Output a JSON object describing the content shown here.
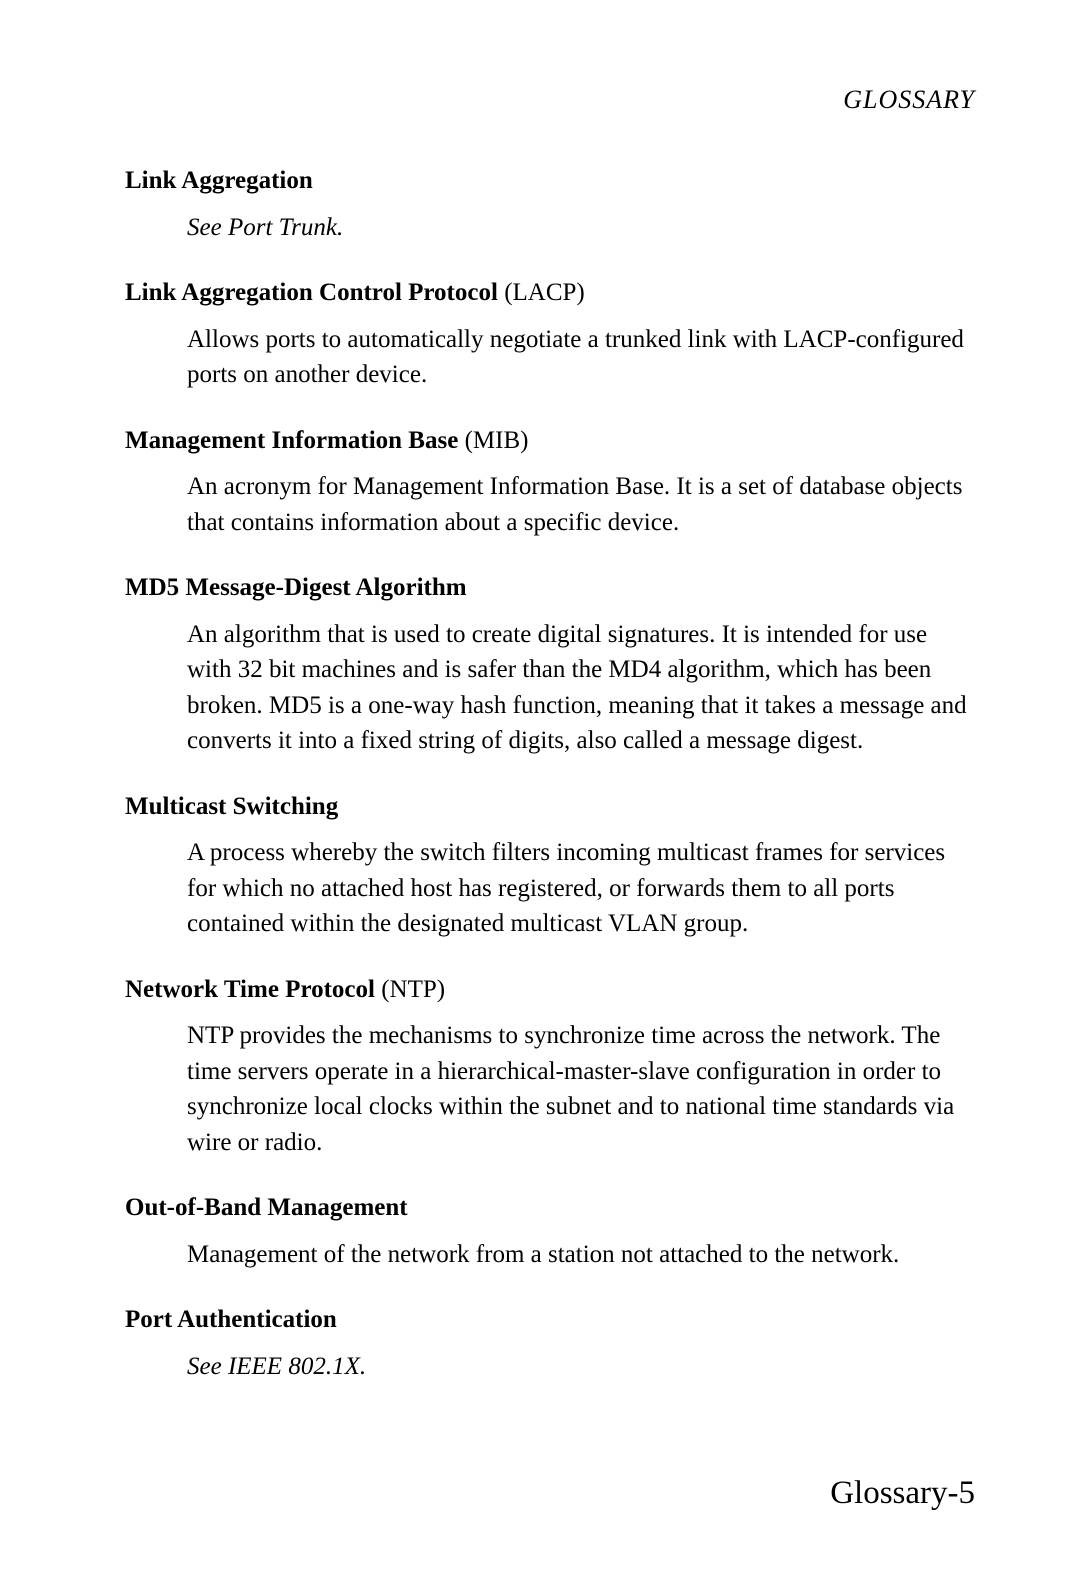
{
  "header": "GLOSSARY",
  "entries": [
    {
      "term_bold": "Link Aggregation",
      "term_paren": "",
      "definition": "See Port Trunk.",
      "italic": true
    },
    {
      "term_bold": "Link Aggregation Control Protocol",
      "term_paren": " (LACP)",
      "definition": "Allows ports to automatically negotiate a trunked link with LACP-configured ports on another device.",
      "italic": false
    },
    {
      "term_bold": "Management Information Base",
      "term_paren": " (MIB)",
      "definition": "An acronym for Management Information Base. It is a set of database objects that contains information about a specific device.",
      "italic": false
    },
    {
      "term_bold": "MD5 Message-Digest Algorithm",
      "term_paren": "",
      "definition": "An algorithm that is used to create digital signatures. It is intended for use with 32 bit machines and is safer than the MD4 algorithm, which has been broken. MD5 is a one-way hash function, meaning that it takes a message and converts it into a fixed string of digits, also called a message digest.",
      "italic": false
    },
    {
      "term_bold": "Multicast Switching",
      "term_paren": "",
      "definition": "A process whereby the switch filters incoming multicast frames for services for which no attached host has registered, or forwards them to all ports contained within the designated multicast VLAN group.",
      "italic": false
    },
    {
      "term_bold": "Network Time Protocol",
      "term_paren": " (NTP)",
      "definition": "NTP provides the mechanisms to synchronize time across the network. The time servers operate in a hierarchical-master-slave configuration in order to synchronize local clocks within the subnet and to national time standards via wire or radio.",
      "italic": false
    },
    {
      "term_bold": "Out-of-Band Management",
      "term_paren": "",
      "definition": "Management of the network from a station not attached to the network.",
      "italic": false
    },
    {
      "term_bold": "Port Authentication",
      "term_paren": "",
      "definition": "See IEEE 802.1X.",
      "italic": true
    }
  ],
  "footer": "Glossary-5"
}
